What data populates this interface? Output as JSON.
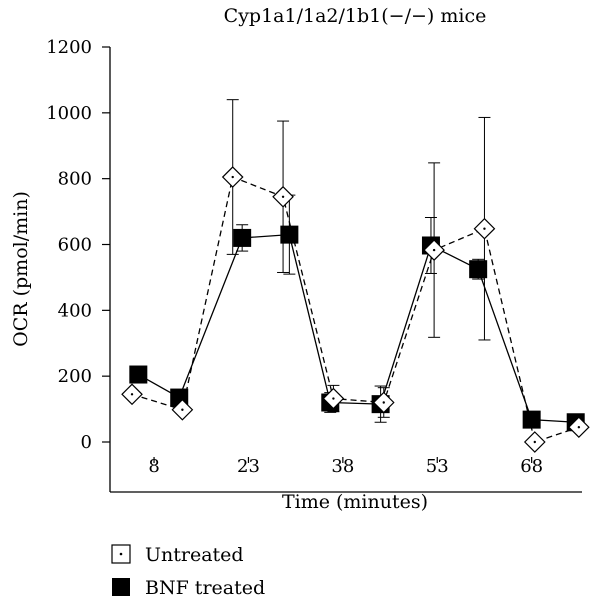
{
  "chart_data": {
    "type": "line",
    "title": "Cyp1a1/1a2/1b1(−/−) mice",
    "xlabel": "Time (minutes)",
    "ylabel": "OCR (pmol/min)",
    "xlim": [
      1,
      76
    ],
    "ylim": [
      0,
      1200
    ],
    "x_ticks": [
      8,
      23,
      38,
      53,
      68
    ],
    "y_ticks": [
      0,
      200,
      400,
      600,
      800,
      1000,
      1200
    ],
    "grid": false,
    "legend_position": "bottom-left",
    "series": [
      {
        "name": "Untreated",
        "marker": "diamond-open",
        "line_style": "dashed",
        "color": "#000000",
        "points": [
          {
            "x": 4.5,
            "y": 145,
            "err": null
          },
          {
            "x": 12.5,
            "y": 98,
            "err": null
          },
          {
            "x": 20.5,
            "y": 805,
            "err": 235
          },
          {
            "x": 28.5,
            "y": 745,
            "err": 230
          },
          {
            "x": 36.5,
            "y": 132,
            "err": 40
          },
          {
            "x": 44.5,
            "y": 120,
            "err": 45
          },
          {
            "x": 52.5,
            "y": 583,
            "err": 265
          },
          {
            "x": 60.5,
            "y": 648,
            "err": 338
          },
          {
            "x": 68.5,
            "y": 0,
            "err": null
          },
          {
            "x": 75.5,
            "y": 45,
            "err": null
          }
        ]
      },
      {
        "name": "BNF treated",
        "marker": "square-filled",
        "line_style": "solid",
        "color": "#000000",
        "points": [
          {
            "x": 5.5,
            "y": 205,
            "err": null
          },
          {
            "x": 12.0,
            "y": 135,
            "err": null
          },
          {
            "x": 22.0,
            "y": 620,
            "err": 40
          },
          {
            "x": 29.5,
            "y": 630,
            "err": 120
          },
          {
            "x": 36.0,
            "y": 120,
            "err": 30
          },
          {
            "x": 44.0,
            "y": 115,
            "err": 55
          },
          {
            "x": 52.0,
            "y": 597,
            "err": 85
          },
          {
            "x": 59.5,
            "y": 525,
            "err": 30
          },
          {
            "x": 68.0,
            "y": 68,
            "err": null
          },
          {
            "x": 75.0,
            "y": 60,
            "err": null
          }
        ]
      }
    ]
  }
}
